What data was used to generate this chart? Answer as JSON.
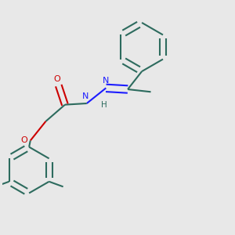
{
  "bg_color": "#e8e8e8",
  "bond_color": "#2d6b5e",
  "n_color": "#1c1cff",
  "o_color": "#cc0000",
  "bond_width": 1.5,
  "dbo": 0.012,
  "figsize": [
    3.0,
    3.0
  ],
  "dpi": 100,
  "xlim": [
    0.05,
    0.95
  ],
  "ylim": [
    0.05,
    0.95
  ]
}
